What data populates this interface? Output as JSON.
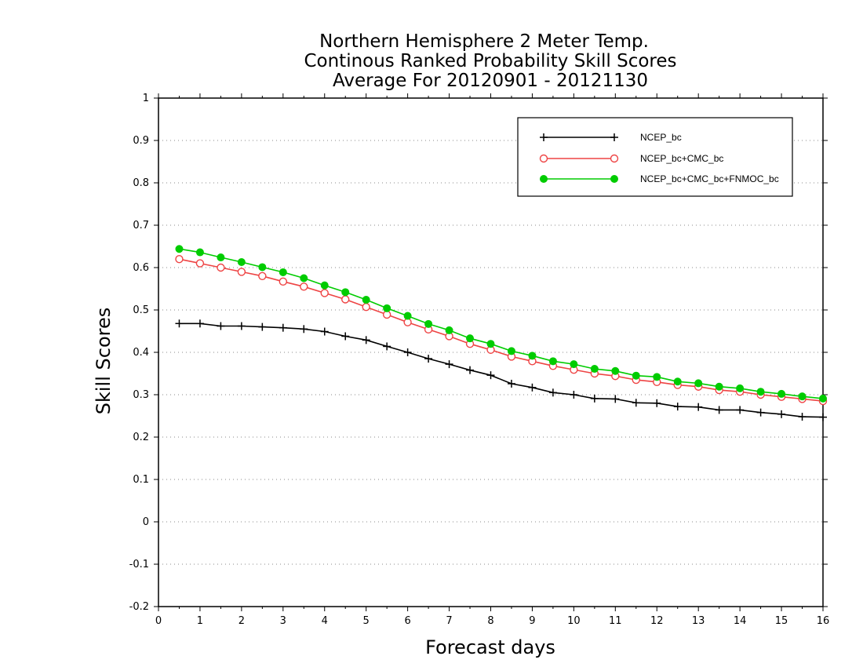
{
  "chart_data": {
    "type": "line",
    "title_lines": [
      "Northern Hemisphere 2 Meter Temp.",
      "Continous Ranked Probability Skill Scores",
      "Average For 20120901 - 20121130"
    ],
    "xlabel": "Forecast days",
    "ylabel": "Skill Scores",
    "xlim": [
      0,
      16
    ],
    "ylim": [
      -0.2,
      1
    ],
    "x_ticks": [
      0,
      1,
      2,
      3,
      4,
      5,
      6,
      7,
      8,
      9,
      10,
      11,
      12,
      13,
      14,
      15,
      16
    ],
    "y_ticks": [
      -0.2,
      -0.1,
      0,
      0.1,
      0.2,
      0.3,
      0.4,
      0.5,
      0.6,
      0.7,
      0.8,
      0.9,
      1
    ],
    "y_tick_labels": [
      "-0.2",
      "-0.1",
      "0",
      "0.1",
      "0.2",
      "0.3",
      "0.4",
      "0.5",
      "0.6",
      "0.7",
      "0.8",
      "0.9",
      "1"
    ],
    "grid": "horizontal dotted",
    "legend_position": "top-right",
    "x": [
      0.5,
      1,
      1.5,
      2,
      2.5,
      3,
      3.5,
      4,
      4.5,
      5,
      5.5,
      6,
      6.5,
      7,
      7.5,
      8,
      8.5,
      9,
      9.5,
      10,
      10.5,
      11,
      11.5,
      12,
      12.5,
      13,
      13.5,
      14,
      14.5,
      15,
      15.5,
      16
    ],
    "series": [
      {
        "name": "NCEP_bc",
        "color": "#000000",
        "marker": "plus",
        "values": [
          0.468,
          0.468,
          0.462,
          0.462,
          0.46,
          0.458,
          0.455,
          0.449,
          0.438,
          0.429,
          0.414,
          0.4,
          0.385,
          0.372,
          0.358,
          0.346,
          0.326,
          0.317,
          0.305,
          0.3,
          0.291,
          0.29,
          0.281,
          0.28,
          0.272,
          0.271,
          0.264,
          0.264,
          0.258,
          0.254,
          0.248,
          0.247
        ]
      },
      {
        "name": "NCEP_bc+CMC_bc",
        "color": "#ee4444",
        "marker": "open-circle",
        "values": [
          0.62,
          0.61,
          0.6,
          0.59,
          0.58,
          0.567,
          0.555,
          0.54,
          0.525,
          0.507,
          0.489,
          0.471,
          0.454,
          0.438,
          0.42,
          0.406,
          0.39,
          0.379,
          0.368,
          0.359,
          0.35,
          0.344,
          0.335,
          0.33,
          0.323,
          0.319,
          0.311,
          0.307,
          0.3,
          0.295,
          0.29,
          0.285
        ]
      },
      {
        "name": "NCEP_bc+CMC_bc+FNMOC_bc",
        "color": "#00cc00",
        "marker": "filled-circle",
        "values": [
          0.644,
          0.636,
          0.624,
          0.613,
          0.601,
          0.589,
          0.575,
          0.558,
          0.542,
          0.524,
          0.504,
          0.486,
          0.467,
          0.452,
          0.433,
          0.42,
          0.403,
          0.392,
          0.379,
          0.372,
          0.361,
          0.356,
          0.345,
          0.342,
          0.331,
          0.327,
          0.319,
          0.315,
          0.307,
          0.302,
          0.296,
          0.291
        ]
      }
    ]
  }
}
